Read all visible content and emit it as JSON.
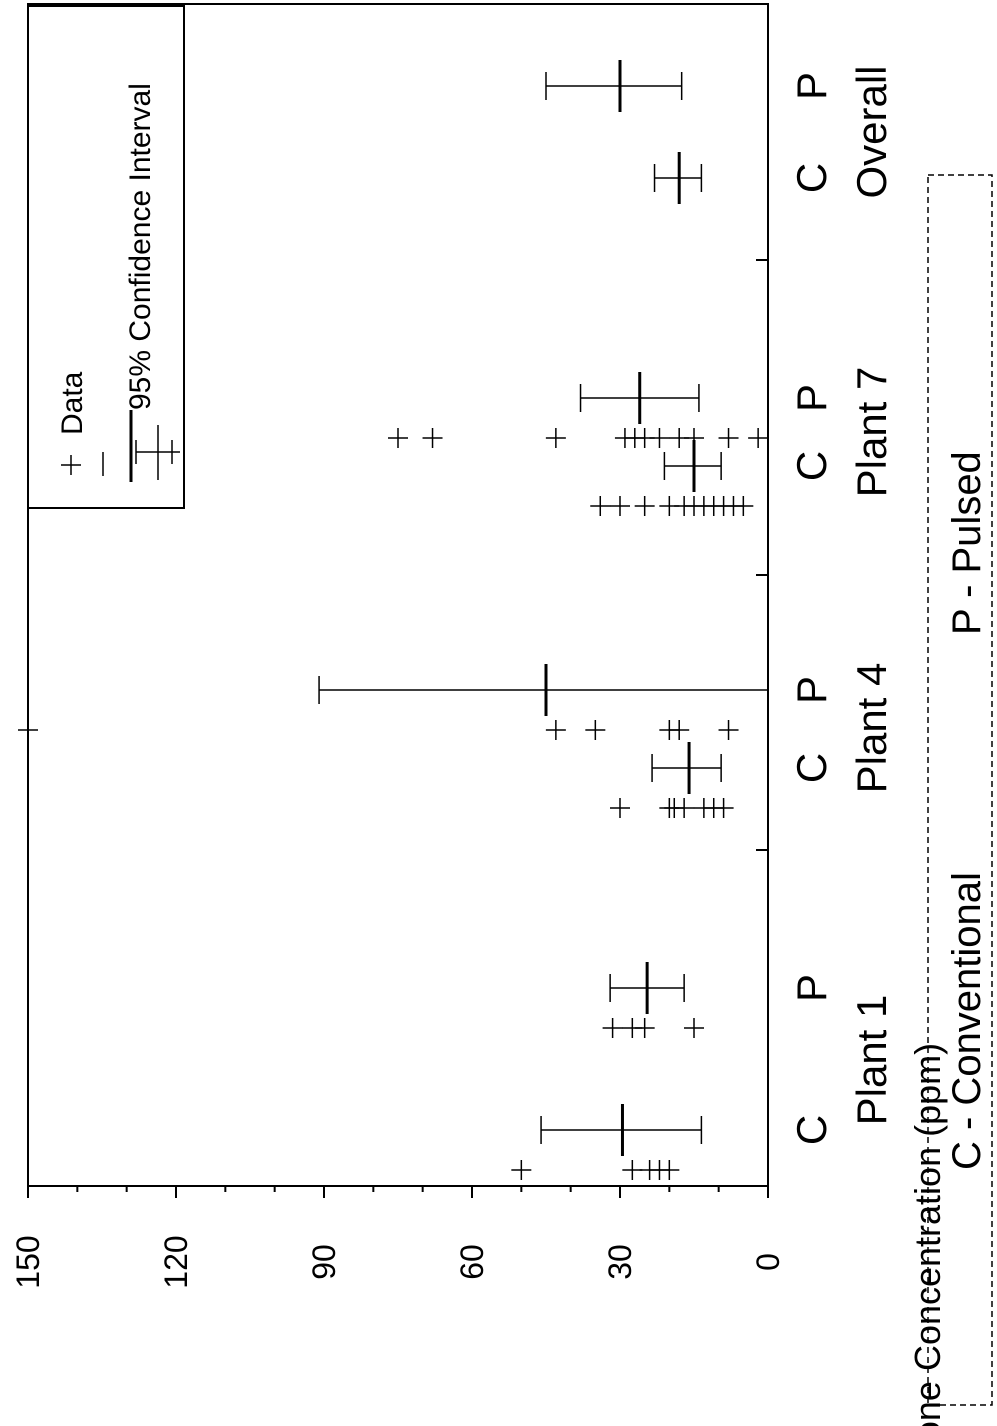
{
  "chart_data": {
    "type": "scatter",
    "orientation": "rotated-90-clockwise",
    "ylabel": "Ozone Concentration (ppm)",
    "ylim": [
      0,
      150
    ],
    "yticks": [
      "0",
      "30",
      "60",
      "90",
      "120",
      "150"
    ],
    "groups": [
      {
        "name": "Plant 1",
        "categories": [
          "C",
          "P"
        ]
      },
      {
        "name": "Plant 4",
        "categories": [
          "C",
          "P"
        ]
      },
      {
        "name": "Plant 7",
        "categories": [
          "C",
          "P"
        ]
      },
      {
        "name": "Overall",
        "categories": [
          "C",
          "P"
        ]
      }
    ],
    "series": [
      {
        "name": "Data",
        "marker": "plus"
      },
      {
        "name": "95% Confidence Interval",
        "marker": "interval"
      }
    ],
    "legend_position": "top-right",
    "notes": [
      "C - Conventional",
      "P - Pulsed"
    ],
    "points": [
      {
        "group": "Plant 1",
        "category": "C",
        "values": [
          50,
          27.5,
          24,
          22,
          20
        ]
      },
      {
        "group": "Plant 1",
        "category": "P",
        "values": [
          31.5,
          27.5,
          25,
          15
        ]
      },
      {
        "group": "Plant 4",
        "category": "C",
        "values": [
          30,
          20,
          19,
          17,
          13,
          11,
          9
        ]
      },
      {
        "group": "Plant 4",
        "category": "P",
        "values": [
          150,
          43,
          35,
          20,
          18,
          8
        ]
      },
      {
        "group": "Plant 7",
        "category": "C",
        "values": [
          34,
          30,
          25,
          20,
          17,
          15,
          13,
          11,
          9,
          7,
          5
        ]
      },
      {
        "group": "Plant 7",
        "category": "P",
        "values": [
          75,
          68,
          43,
          29,
          27,
          25,
          22,
          18,
          15,
          8,
          2
        ]
      }
    ],
    "intervals": [
      {
        "group": "Plant 1",
        "category": "C",
        "mean": 29.5,
        "low": 13.5,
        "high": 46
      },
      {
        "group": "Plant 1",
        "category": "P",
        "mean": 24.5,
        "low": 17,
        "high": 32
      },
      {
        "group": "Plant 4",
        "category": "C",
        "mean": 16,
        "low": 9.5,
        "high": 23.5
      },
      {
        "group": "Plant 4",
        "category": "P",
        "mean": 45,
        "low": 0,
        "high": 91
      },
      {
        "group": "Plant 7",
        "category": "C",
        "mean": 15,
        "low": 9.5,
        "high": 21
      },
      {
        "group": "Plant 7",
        "category": "P",
        "mean": 26,
        "low": 14,
        "high": 38
      },
      {
        "group": "Overall",
        "category": "C",
        "mean": 18,
        "low": 13.5,
        "high": 23
      },
      {
        "group": "Overall",
        "category": "P",
        "mean": 30,
        "low": 17.5,
        "high": 45
      }
    ]
  }
}
